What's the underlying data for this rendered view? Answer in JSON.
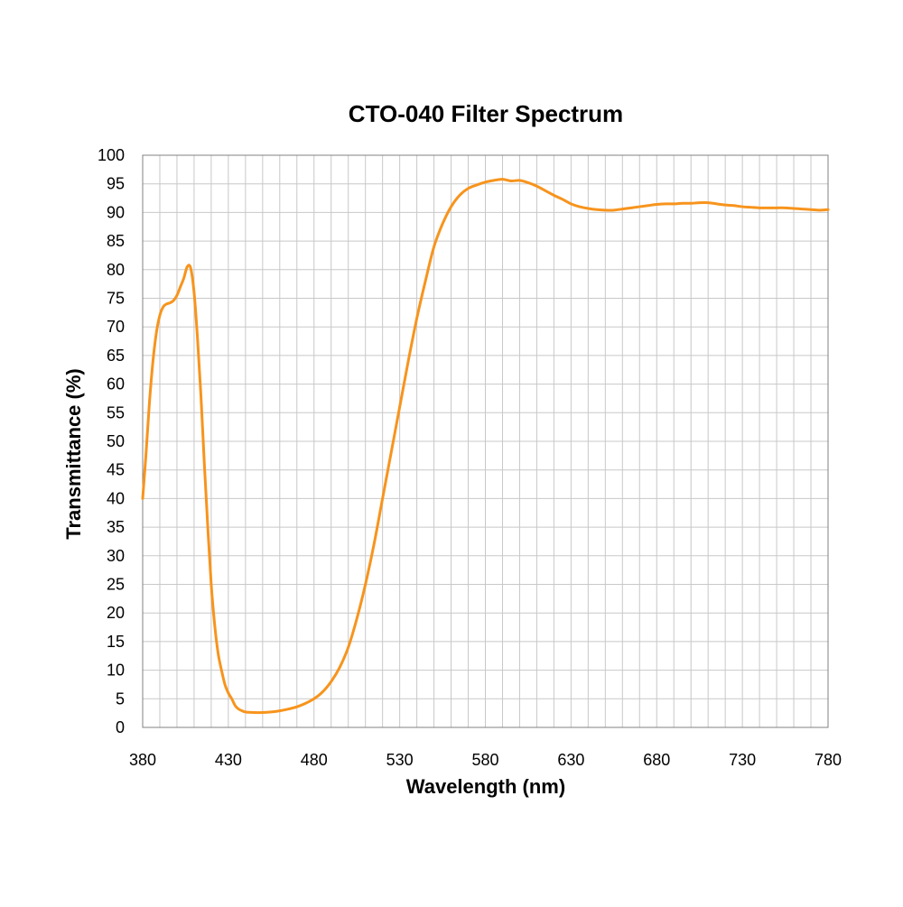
{
  "chart_data": {
    "type": "line",
    "title": "CTO-040 Filter Spectrum",
    "xlabel": "Wavelength (nm)",
    "ylabel": "Transmittance (%)",
    "xlim": [
      380,
      780
    ],
    "ylim": [
      0,
      100
    ],
    "x_ticks": [
      380,
      430,
      480,
      530,
      580,
      630,
      680,
      730,
      780
    ],
    "y_ticks": [
      0,
      5,
      10,
      15,
      20,
      25,
      30,
      35,
      40,
      45,
      50,
      55,
      60,
      65,
      70,
      75,
      80,
      85,
      90,
      95,
      100
    ],
    "x_grid_step": 10,
    "y_grid_step": 5,
    "grid": true,
    "legend": "none",
    "series": [
      {
        "color": "#f7941d",
        "x": [
          380,
          382,
          384,
          386,
          388,
          390,
          392,
          394,
          396,
          398,
          400,
          402,
          404,
          406,
          408,
          410,
          412,
          414,
          416,
          418,
          420,
          422,
          424,
          426,
          428,
          430,
          432,
          434,
          436,
          438,
          440,
          445,
          450,
          455,
          460,
          465,
          470,
          475,
          480,
          485,
          490,
          495,
          500,
          505,
          510,
          515,
          520,
          525,
          530,
          535,
          540,
          545,
          550,
          555,
          560,
          565,
          570,
          575,
          580,
          585,
          590,
          595,
          600,
          605,
          610,
          615,
          620,
          625,
          630,
          635,
          640,
          645,
          650,
          655,
          660,
          665,
          670,
          675,
          680,
          685,
          690,
          695,
          700,
          705,
          710,
          715,
          720,
          725,
          730,
          735,
          740,
          745,
          750,
          755,
          760,
          765,
          770,
          775,
          780
        ],
        "y": [
          40,
          48,
          57,
          64,
          69,
          72,
          73.5,
          74,
          74.2,
          74.6,
          75.5,
          77,
          78.5,
          80.5,
          80.3,
          76,
          68,
          58,
          46,
          35,
          25,
          18,
          13,
          10,
          7.5,
          6,
          5,
          3.8,
          3.2,
          2.9,
          2.7,
          2.6,
          2.6,
          2.7,
          2.9,
          3.2,
          3.6,
          4.2,
          5,
          6.2,
          8,
          10.5,
          14,
          19,
          25,
          32,
          40,
          48,
          56,
          64,
          71.5,
          78,
          84,
          88,
          91,
          93,
          94.2,
          94.8,
          95.3,
          95.6,
          95.8,
          95.5,
          95.6,
          95.2,
          94.6,
          93.8,
          93,
          92.3,
          91.5,
          91,
          90.7,
          90.5,
          90.4,
          90.4,
          90.6,
          90.8,
          91,
          91.2,
          91.4,
          91.5,
          91.5,
          91.6,
          91.6,
          91.7,
          91.7,
          91.5,
          91.3,
          91.2,
          91,
          90.9,
          90.8,
          90.8,
          90.8,
          90.8,
          90.7,
          90.6,
          90.5,
          90.4,
          90.5
        ]
      }
    ]
  }
}
